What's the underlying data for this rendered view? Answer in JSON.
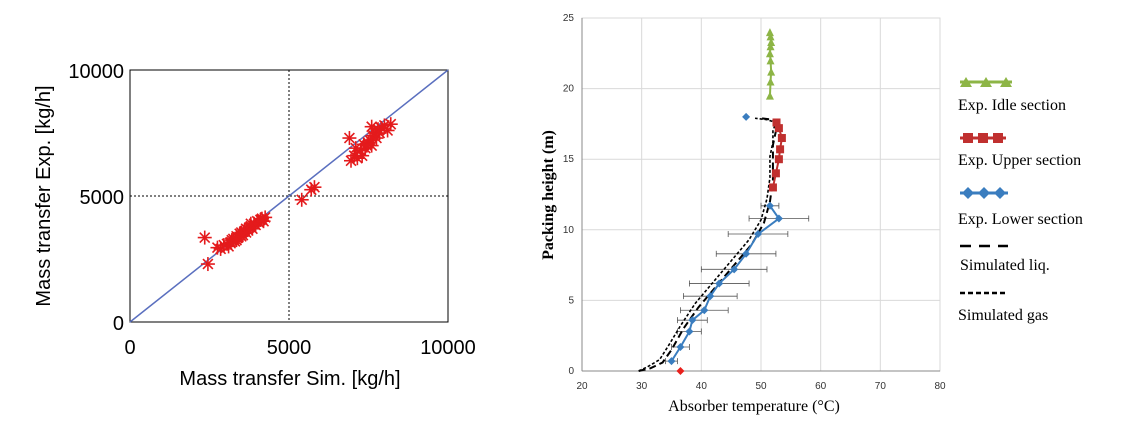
{
  "chart_data": [
    {
      "type": "scatter",
      "title": "",
      "xlabel": "Mass transfer Sim. [kg/h]",
      "ylabel": "Mass transfer Exp. [kg/h]",
      "xlim": [
        0,
        10000
      ],
      "ylim": [
        0,
        10000
      ],
      "x_ticks": [
        "0",
        "5000",
        "10000"
      ],
      "y_ticks": [
        "0",
        "5000",
        "10000"
      ],
      "grid": "dotted at 5000 and 10000",
      "marker_color": "#e41a1c",
      "line_color": "#5a6fbf",
      "reference_line": {
        "name": "",
        "x": [
          0,
          10000
        ],
        "y": [
          0,
          10000
        ]
      },
      "series": [
        {
          "name": "",
          "x": [
            2350,
            2450,
            2750,
            2850,
            2950,
            3050,
            3100,
            3200,
            3250,
            3300,
            3350,
            3400,
            3450,
            3500,
            3550,
            3600,
            3650,
            3700,
            3750,
            3800,
            3850,
            3900,
            3950,
            4000,
            4050,
            4100,
            4150,
            4200,
            4250,
            3150,
            3350,
            3500,
            3650,
            3800,
            5400,
            5700,
            5800,
            6900,
            6950,
            7050,
            7150,
            7250,
            7300,
            7400,
            7450,
            7500,
            7550,
            7600,
            7650,
            7700,
            7750,
            7800,
            7850,
            7900,
            8000,
            8100,
            8200,
            7100,
            7350,
            7600
          ],
          "y": [
            3350,
            2300,
            2950,
            2900,
            3050,
            3100,
            3000,
            3250,
            3300,
            3200,
            3400,
            3350,
            3500,
            3550,
            3450,
            3600,
            3700,
            3650,
            3750,
            3800,
            3700,
            3900,
            3850,
            4000,
            3950,
            4050,
            4100,
            4000,
            4150,
            3150,
            3250,
            3400,
            3550,
            3900,
            4850,
            5250,
            5350,
            7300,
            6400,
            6600,
            6500,
            6800,
            6600,
            6900,
            7000,
            7100,
            7200,
            7000,
            7400,
            7500,
            7300,
            7650,
            7500,
            7700,
            7800,
            7600,
            7850,
            6900,
            7050,
            7750
          ]
        }
      ]
    },
    {
      "type": "line",
      "title": "",
      "xlabel": "Absorber temperature (°C)",
      "ylabel": "Packing height (m)",
      "xlim": [
        20,
        80
      ],
      "ylim": [
        0,
        25
      ],
      "x_ticks": [
        "20",
        "30",
        "40",
        "50",
        "60",
        "70",
        "80"
      ],
      "y_ticks": [
        "0",
        "5",
        "10",
        "15",
        "20",
        "25"
      ],
      "grid": true,
      "legend_position": "right",
      "series": [
        {
          "name": "Exp. Idle section",
          "color": "#8db546",
          "marker": "triangle",
          "x": [
            51.5,
            51.6,
            51.7,
            51.6,
            51.5,
            51.6,
            51.7,
            51.6,
            51.5
          ],
          "y": [
            19.5,
            20.5,
            21.2,
            22.0,
            22.5,
            23.0,
            23.3,
            23.7,
            24.0
          ]
        },
        {
          "name": "Exp. Upper section",
          "color": "#c0302f",
          "marker": "square",
          "x": [
            52.0,
            52.5,
            53.0,
            53.2,
            53.5,
            53.0,
            52.6
          ],
          "y": [
            13.0,
            14.0,
            15.0,
            15.7,
            16.5,
            17.2,
            17.6
          ]
        },
        {
          "name": "Exp. Lower section",
          "color": "#3a7dbf",
          "marker": "diamond",
          "x": [
            35.0,
            36.5,
            38.0,
            38.5,
            40.5,
            41.5,
            43.0,
            45.5,
            47.5,
            49.5,
            53.0,
            51.5
          ],
          "y": [
            0.7,
            1.7,
            2.8,
            3.6,
            4.3,
            5.3,
            6.2,
            7.2,
            8.3,
            9.7,
            10.8,
            11.7
          ],
          "x_err": [
            1.0,
            1.5,
            2.0,
            2.5,
            4.0,
            4.5,
            5.0,
            5.5,
            5.0,
            5.0,
            5.0,
            1.5
          ],
          "extra_point": {
            "x": 47.5,
            "y": 18.0
          }
        },
        {
          "name": "Simulated liq.",
          "color": "#000000",
          "style": "dashed",
          "x": [
            29.5,
            31.5,
            33.5,
            35.0,
            37.0,
            39.5,
            42.5,
            45.5,
            48.5,
            50.5,
            51.5,
            52.0,
            52.0,
            52.0,
            52.5,
            52.5,
            52.0,
            50.0
          ],
          "y": [
            0.0,
            0.2,
            0.6,
            1.5,
            3.0,
            4.5,
            6.0,
            7.5,
            9.0,
            10.5,
            12.0,
            13.5,
            15.0,
            16.0,
            17.0,
            17.5,
            17.8,
            17.9
          ]
        },
        {
          "name": "Simulated gas",
          "color": "#000000",
          "style": "short-dashed",
          "x": [
            29.5,
            31.0,
            33.0,
            34.5,
            36.5,
            39.0,
            42.0,
            45.0,
            48.0,
            50.0,
            51.0,
            51.5,
            51.5,
            52.0,
            52.0,
            52.5,
            51.0,
            49.0
          ],
          "y": [
            0.0,
            0.3,
            0.8,
            1.8,
            3.2,
            4.8,
            6.3,
            7.8,
            9.3,
            10.7,
            12.2,
            13.7,
            15.2,
            16.2,
            17.0,
            17.6,
            17.8,
            17.9
          ]
        }
      ],
      "extra_marker": {
        "color": "#e8201c",
        "marker": "diamond",
        "x": 36.5,
        "y": 0.0
      }
    }
  ]
}
